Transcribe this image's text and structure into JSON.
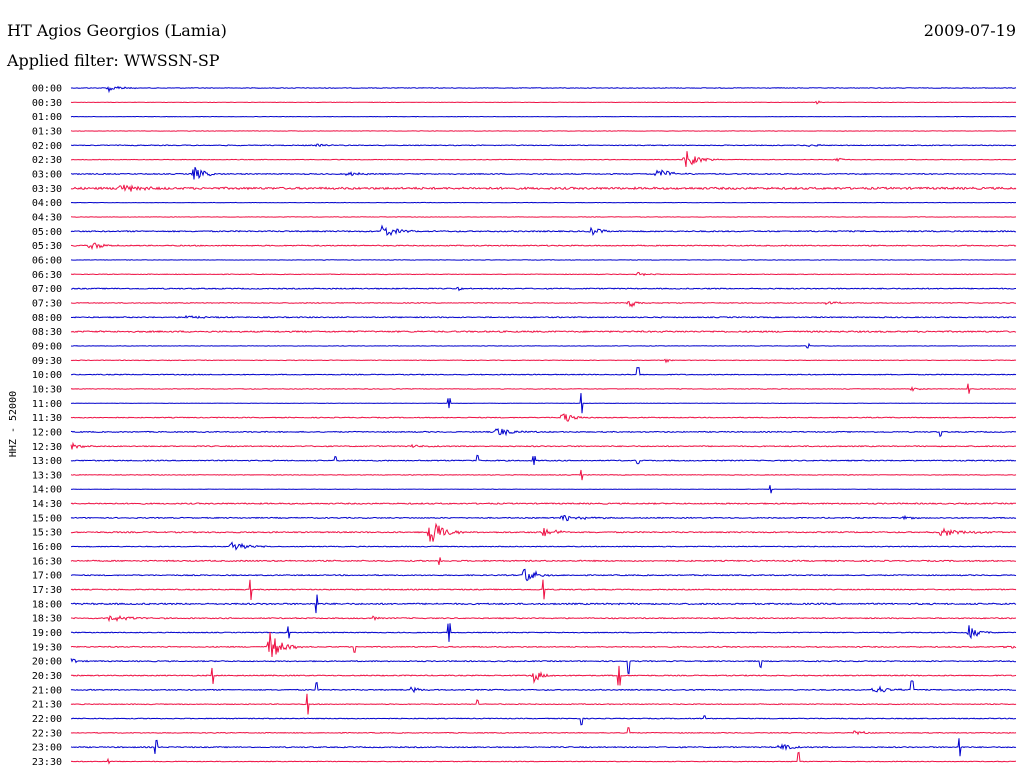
{
  "header": {
    "station": "HT Agios Georgios (Lamia)",
    "date": "2009-07-19",
    "filter": "Applied filter: WWSSN-SP"
  },
  "axis": {
    "ylabel": "HHZ - 52000"
  },
  "colors": {
    "even_line": "#0000cc",
    "odd_line": "#ee1144",
    "text": "#000000",
    "background": "#ffffff"
  },
  "chart_data": {
    "type": "line",
    "title": "HT Agios Georgios (Lamia)",
    "subtitle": "Applied filter: WWSSN-SP",
    "ylabel": "HHZ - 52000",
    "row_labels": [
      "00:00",
      "00:30",
      "01:00",
      "01:30",
      "02:00",
      "02:30",
      "03:00",
      "03:30",
      "04:00",
      "04:30",
      "05:00",
      "05:30",
      "06:00",
      "06:30",
      "07:00",
      "07:30",
      "08:00",
      "08:30",
      "09:00",
      "09:30",
      "10:00",
      "10:30",
      "11:00",
      "11:30",
      "12:00",
      "12:30",
      "13:00",
      "13:30",
      "14:00",
      "14:30",
      "15:00",
      "15:30",
      "16:00",
      "16:30",
      "17:00",
      "17:30",
      "18:00",
      "18:30",
      "19:00",
      "19:30",
      "20:00",
      "20:30",
      "21:00",
      "21:30",
      "22:00",
      "22:30",
      "23:00",
      "23:30"
    ],
    "series": [
      {
        "label": "00:00",
        "noise": 0.3,
        "events": [
          {
            "x": 0.04,
            "amp": 5,
            "dur": 0.035,
            "kind": "burst"
          }
        ]
      },
      {
        "label": "00:30",
        "noise": 0.2,
        "events": [
          {
            "x": 0.79,
            "amp": 2,
            "dur": 0.01,
            "kind": "burst"
          }
        ]
      },
      {
        "label": "01:00",
        "noise": 0.2,
        "events": []
      },
      {
        "label": "01:30",
        "noise": 0.2,
        "events": []
      },
      {
        "label": "02:00",
        "noise": 0.4,
        "events": [
          {
            "x": 0.26,
            "amp": 2,
            "dur": 0.03,
            "kind": "burst"
          },
          {
            "x": 0.78,
            "amp": 1.5,
            "dur": 0.05,
            "kind": "burst"
          }
        ]
      },
      {
        "label": "02:30",
        "noise": 0.3,
        "events": [
          {
            "x": 0.65,
            "amp": 10,
            "dur": 0.035,
            "kind": "burst"
          },
          {
            "x": 0.81,
            "amp": 2,
            "dur": 0.02,
            "kind": "burst"
          }
        ]
      },
      {
        "label": "03:00",
        "noise": 0.5,
        "events": [
          {
            "x": 0.13,
            "amp": 8,
            "dur": 0.03,
            "kind": "burst"
          },
          {
            "x": 0.29,
            "amp": 2.5,
            "dur": 0.05,
            "kind": "burst"
          },
          {
            "x": 0.62,
            "amp": 6,
            "dur": 0.04,
            "kind": "burst"
          }
        ]
      },
      {
        "label": "03:30",
        "noise": 1.0,
        "events": [
          {
            "x": 0.05,
            "amp": 5,
            "dur": 0.06,
            "kind": "burst"
          }
        ]
      },
      {
        "label": "04:00",
        "noise": 0.2,
        "events": []
      },
      {
        "label": "04:30",
        "noise": 0.2,
        "events": []
      },
      {
        "label": "05:00",
        "noise": 0.6,
        "events": [
          {
            "x": 0.33,
            "amp": 8,
            "dur": 0.035,
            "kind": "burst"
          },
          {
            "x": 0.55,
            "amp": 5,
            "dur": 0.03,
            "kind": "burst"
          }
        ]
      },
      {
        "label": "05:30",
        "noise": 0.5,
        "events": [
          {
            "x": 0.02,
            "amp": 4,
            "dur": 0.05,
            "kind": "burst"
          }
        ]
      },
      {
        "label": "06:00",
        "noise": 0.2,
        "events": []
      },
      {
        "label": "06:30",
        "noise": 0.3,
        "events": [
          {
            "x": 0.6,
            "amp": 2,
            "dur": 0.03,
            "kind": "burst"
          }
        ]
      },
      {
        "label": "07:00",
        "noise": 0.5,
        "events": [
          {
            "x": 0.41,
            "amp": 2,
            "dur": 0.01,
            "kind": "burst"
          }
        ]
      },
      {
        "label": "07:30",
        "noise": 0.4,
        "events": [
          {
            "x": 0.59,
            "amp": 5,
            "dur": 0.03,
            "kind": "burst"
          },
          {
            "x": 0.8,
            "amp": 2,
            "dur": 0.03,
            "kind": "burst"
          }
        ]
      },
      {
        "label": "08:00",
        "noise": 0.5,
        "events": [
          {
            "x": 0.12,
            "amp": 2,
            "dur": 0.06,
            "kind": "burst"
          }
        ]
      },
      {
        "label": "08:30",
        "noise": 0.7,
        "events": []
      },
      {
        "label": "09:00",
        "noise": 0.2,
        "events": [
          {
            "x": 0.78,
            "amp": 2,
            "dur": 0.006,
            "kind": "spike"
          }
        ]
      },
      {
        "label": "09:30",
        "noise": 0.3,
        "events": [
          {
            "x": 0.63,
            "amp": 2,
            "dur": 0.01,
            "kind": "burst"
          }
        ]
      },
      {
        "label": "10:00",
        "noise": 0.4,
        "events": [
          {
            "x": 0.6,
            "amp": 7,
            "dur": 0.006,
            "kind": "spike"
          }
        ]
      },
      {
        "label": "10:30",
        "noise": 0.3,
        "events": [
          {
            "x": 0.89,
            "amp": 2,
            "dur": 0.02,
            "kind": "burst"
          },
          {
            "x": 0.95,
            "amp": 5,
            "dur": 0.006,
            "kind": "spike"
          }
        ]
      },
      {
        "label": "11:00",
        "noise": 0.2,
        "events": [
          {
            "x": 0.4,
            "amp": 5,
            "dur": 0.006,
            "kind": "spike"
          },
          {
            "x": 0.54,
            "amp": 10,
            "dur": 0.006,
            "kind": "spike"
          }
        ]
      },
      {
        "label": "11:30",
        "noise": 0.4,
        "events": [
          {
            "x": 0.52,
            "amp": 7,
            "dur": 0.03,
            "kind": "burst"
          }
        ]
      },
      {
        "label": "12:00",
        "noise": 0.5,
        "events": [
          {
            "x": 0.45,
            "amp": 5,
            "dur": 0.05,
            "kind": "burst"
          },
          {
            "x": 0.92,
            "amp": 4,
            "dur": 0.006,
            "kind": "spike"
          }
        ]
      },
      {
        "label": "12:30",
        "noise": 0.5,
        "events": [
          {
            "x": 0.0,
            "amp": 4,
            "dur": 0.03,
            "kind": "burst"
          },
          {
            "x": 0.36,
            "amp": 2,
            "dur": 0.04,
            "kind": "burst"
          }
        ]
      },
      {
        "label": "13:00",
        "noise": 0.5,
        "events": [
          {
            "x": 0.28,
            "amp": 4,
            "dur": 0.006,
            "kind": "spike"
          },
          {
            "x": 0.43,
            "amp": 5,
            "dur": 0.006,
            "kind": "spike"
          },
          {
            "x": 0.49,
            "amp": 4,
            "dur": 0.006,
            "kind": "spike"
          },
          {
            "x": 0.6,
            "amp": 3,
            "dur": 0.006,
            "kind": "spike"
          }
        ]
      },
      {
        "label": "13:30",
        "noise": 0.3,
        "events": [
          {
            "x": 0.54,
            "amp": 5,
            "dur": 0.006,
            "kind": "spike"
          }
        ]
      },
      {
        "label": "14:00",
        "noise": 0.2,
        "events": [
          {
            "x": 0.74,
            "amp": 4,
            "dur": 0.006,
            "kind": "spike"
          }
        ]
      },
      {
        "label": "14:30",
        "noise": 0.6,
        "events": []
      },
      {
        "label": "15:00",
        "noise": 0.5,
        "events": [
          {
            "x": 0.52,
            "amp": 4,
            "dur": 0.06,
            "kind": "burst"
          },
          {
            "x": 0.88,
            "amp": 2,
            "dur": 0.03,
            "kind": "burst"
          }
        ]
      },
      {
        "label": "15:30",
        "noise": 0.6,
        "events": [
          {
            "x": 0.38,
            "amp": 18,
            "dur": 0.035,
            "kind": "burst"
          },
          {
            "x": 0.5,
            "amp": 5,
            "dur": 0.04,
            "kind": "burst"
          },
          {
            "x": 0.92,
            "amp": 4,
            "dur": 0.08,
            "kind": "burst"
          }
        ]
      },
      {
        "label": "16:00",
        "noise": 0.4,
        "events": [
          {
            "x": 0.17,
            "amp": 7,
            "dur": 0.04,
            "kind": "burst"
          }
        ]
      },
      {
        "label": "16:30",
        "noise": 0.6,
        "events": [
          {
            "x": 0.39,
            "amp": 4,
            "dur": 0.006,
            "kind": "spike"
          }
        ]
      },
      {
        "label": "17:00",
        "noise": 0.5,
        "events": [
          {
            "x": 0.48,
            "amp": 9,
            "dur": 0.035,
            "kind": "burst"
          }
        ]
      },
      {
        "label": "17:30",
        "noise": 0.5,
        "events": [
          {
            "x": 0.19,
            "amp": 10,
            "dur": 0.006,
            "kind": "spike"
          },
          {
            "x": 0.5,
            "amp": 10,
            "dur": 0.006,
            "kind": "spike"
          }
        ]
      },
      {
        "label": "18:00",
        "noise": 0.7,
        "events": [
          {
            "x": 0.26,
            "amp": 9,
            "dur": 0.006,
            "kind": "spike"
          }
        ]
      },
      {
        "label": "18:30",
        "noise": 0.5,
        "events": [
          {
            "x": 0.04,
            "amp": 4,
            "dur": 0.06,
            "kind": "burst"
          },
          {
            "x": 0.32,
            "amp": 3,
            "dur": 0.01,
            "kind": "burst"
          }
        ]
      },
      {
        "label": "19:00",
        "noise": 0.4,
        "events": [
          {
            "x": 0.23,
            "amp": 6,
            "dur": 0.006,
            "kind": "spike"
          },
          {
            "x": 0.4,
            "amp": 9,
            "dur": 0.006,
            "kind": "spike"
          },
          {
            "x": 0.95,
            "amp": 8,
            "dur": 0.03,
            "kind": "burst"
          }
        ]
      },
      {
        "label": "19:30",
        "noise": 0.5,
        "events": [
          {
            "x": 0.21,
            "amp": 16,
            "dur": 0.035,
            "kind": "burst"
          },
          {
            "x": 0.3,
            "amp": 5,
            "dur": 0.006,
            "kind": "spike"
          },
          {
            "x": 0.99,
            "amp": 3,
            "dur": 0.02,
            "kind": "burst"
          }
        ]
      },
      {
        "label": "20:00",
        "noise": 0.5,
        "events": [
          {
            "x": 0.0,
            "amp": 3,
            "dur": 0.02,
            "kind": "burst"
          },
          {
            "x": 0.59,
            "amp": 12,
            "dur": 0.006,
            "kind": "spike"
          },
          {
            "x": 0.73,
            "amp": 6,
            "dur": 0.006,
            "kind": "spike"
          }
        ]
      },
      {
        "label": "20:30",
        "noise": 0.5,
        "events": [
          {
            "x": 0.15,
            "amp": 8,
            "dur": 0.006,
            "kind": "spike"
          },
          {
            "x": 0.49,
            "amp": 7,
            "dur": 0.025,
            "kind": "burst"
          },
          {
            "x": 0.58,
            "amp": 10,
            "dur": 0.006,
            "kind": "spike"
          }
        ]
      },
      {
        "label": "21:00",
        "noise": 0.5,
        "events": [
          {
            "x": 0.26,
            "amp": 7,
            "dur": 0.006,
            "kind": "spike"
          },
          {
            "x": 0.36,
            "amp": 3,
            "dur": 0.03,
            "kind": "burst"
          },
          {
            "x": 0.85,
            "amp": 5,
            "dur": 0.04,
            "kind": "burst"
          },
          {
            "x": 0.89,
            "amp": 9,
            "dur": 0.006,
            "kind": "spike"
          }
        ]
      },
      {
        "label": "21:30",
        "noise": 0.4,
        "events": [
          {
            "x": 0.25,
            "amp": 10,
            "dur": 0.006,
            "kind": "spike"
          },
          {
            "x": 0.43,
            "amp": 4,
            "dur": 0.006,
            "kind": "spike"
          }
        ]
      },
      {
        "label": "22:00",
        "noise": 0.4,
        "events": [
          {
            "x": 0.54,
            "amp": 6,
            "dur": 0.006,
            "kind": "spike"
          },
          {
            "x": 0.67,
            "amp": 3,
            "dur": 0.006,
            "kind": "spike"
          }
        ]
      },
      {
        "label": "22:30",
        "noise": 0.4,
        "events": [
          {
            "x": 0.59,
            "amp": 5,
            "dur": 0.006,
            "kind": "spike"
          },
          {
            "x": 0.83,
            "amp": 4,
            "dur": 0.02,
            "kind": "burst"
          }
        ]
      },
      {
        "label": "23:00",
        "noise": 0.5,
        "events": [
          {
            "x": 0.09,
            "amp": 7,
            "dur": 0.006,
            "kind": "spike"
          },
          {
            "x": 0.75,
            "amp": 5,
            "dur": 0.03,
            "kind": "burst"
          },
          {
            "x": 0.94,
            "amp": 9,
            "dur": 0.006,
            "kind": "spike"
          }
        ]
      },
      {
        "label": "23:30",
        "noise": 0.3,
        "events": [
          {
            "x": 0.77,
            "amp": 9,
            "dur": 0.006,
            "kind": "spike"
          },
          {
            "x": 0.04,
            "amp": 2,
            "dur": 0.006,
            "kind": "spike"
          }
        ]
      }
    ]
  }
}
